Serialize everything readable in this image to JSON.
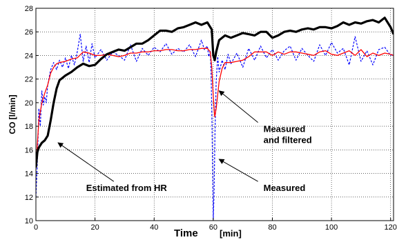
{
  "chart_data": {
    "type": "line",
    "title": "",
    "xlabel": "Time",
    "xlabel_unit": "[min]",
    "ylabel": "CO [l/min]",
    "xlim": [
      0,
      121
    ],
    "ylim": [
      10,
      28
    ],
    "xticks": [
      "0",
      "20",
      "40",
      "60",
      "80",
      "100",
      "120"
    ],
    "yticks": [
      "10",
      "12",
      "14",
      "16",
      "18",
      "20",
      "22",
      "24",
      "26",
      "28"
    ],
    "grid": true,
    "series": [
      {
        "name": "Estimated from HR",
        "color": "#000000",
        "style": "solid-thick",
        "x": [
          0,
          0.5,
          1,
          2,
          3,
          4,
          5,
          6,
          7,
          8,
          10,
          12,
          14,
          16,
          18,
          20,
          22,
          24,
          26,
          28,
          30,
          32,
          34,
          36,
          38,
          40,
          42,
          44,
          46,
          48,
          50,
          52,
          54,
          56,
          58,
          59.5,
          60,
          60.5,
          61,
          62,
          64,
          66,
          68,
          70,
          72,
          74,
          76,
          78,
          80,
          82,
          84,
          86,
          88,
          90,
          92,
          94,
          96,
          98,
          100,
          102,
          104,
          106,
          108,
          110,
          112,
          114,
          116,
          118,
          119,
          120,
          121
        ],
        "y": [
          14.5,
          15.8,
          16.2,
          16.6,
          16.8,
          17.2,
          18.5,
          20.0,
          21.2,
          21.9,
          22.3,
          22.6,
          23.0,
          23.3,
          23.1,
          23.2,
          23.7,
          24.1,
          24.3,
          24.5,
          24.4,
          24.7,
          25.0,
          25.0,
          25.3,
          25.7,
          26.1,
          26.1,
          26.0,
          26.3,
          26.4,
          26.6,
          26.8,
          26.6,
          26.8,
          26.2,
          24.0,
          23.6,
          24.3,
          25.3,
          25.7,
          25.5,
          25.7,
          25.9,
          25.8,
          25.7,
          26.0,
          26.0,
          25.5,
          25.7,
          26.0,
          26.1,
          26.0,
          26.2,
          26.3,
          26.2,
          26.4,
          26.4,
          26.3,
          26.5,
          26.8,
          26.6,
          26.8,
          26.7,
          26.9,
          27.0,
          26.8,
          27.2,
          26.8,
          26.4,
          25.8
        ]
      },
      {
        "name": "Measured",
        "color": "#0000ff",
        "style": "dashed",
        "x": [
          0,
          0.5,
          1,
          1.5,
          2,
          2.5,
          3,
          3.5,
          4,
          5,
          6,
          7,
          8,
          9,
          10,
          11,
          12,
          13,
          14,
          15,
          16,
          17,
          18,
          19,
          20,
          22,
          24,
          26,
          28,
          30,
          32,
          34,
          36,
          38,
          40,
          42,
          44,
          46,
          48,
          50,
          52,
          54,
          56,
          57,
          58,
          58.5,
          59,
          59.3,
          59.6,
          60,
          60.3,
          60.6,
          61,
          61.5,
          62,
          63,
          64,
          65,
          66,
          68,
          70,
          72,
          74,
          76,
          78,
          80,
          82,
          84,
          86,
          88,
          90,
          92,
          94,
          96,
          98,
          100,
          102,
          104,
          106,
          108,
          110,
          112,
          114,
          116,
          118,
          120,
          121
        ],
        "y": [
          12.0,
          15.0,
          19.5,
          18.0,
          21.0,
          19.8,
          20.5,
          20.0,
          21.5,
          22.8,
          23.4,
          22.8,
          23.6,
          23.0,
          23.8,
          22.9,
          24.0,
          23.2,
          24.3,
          25.8,
          23.5,
          24.8,
          23.4,
          25.0,
          23.8,
          24.5,
          23.6,
          24.3,
          24.0,
          23.6,
          24.9,
          23.5,
          24.6,
          24.0,
          24.7,
          24.3,
          25.0,
          24.1,
          24.6,
          24.3,
          24.9,
          23.9,
          25.3,
          24.5,
          24.8,
          23.9,
          24.4,
          22.0,
          18.0,
          10.1,
          12.5,
          17.5,
          21.8,
          23.9,
          22.6,
          23.6,
          22.8,
          24.1,
          23.3,
          24.2,
          23.0,
          24.6,
          23.6,
          24.8,
          23.8,
          24.5,
          23.6,
          24.4,
          24.8,
          23.6,
          24.6,
          24.0,
          23.5,
          24.9,
          24.0,
          25.1,
          24.2,
          24.6,
          23.2,
          25.6,
          23.5,
          24.4,
          23.2,
          24.5,
          24.7,
          24.0,
          24.1
        ]
      },
      {
        "name": "Measured and filtered",
        "color": "#ff0000",
        "style": "solid",
        "x": [
          0,
          0.5,
          1,
          2,
          3,
          4,
          5,
          6,
          7,
          8,
          10,
          12,
          14,
          16,
          18,
          20,
          22,
          24,
          26,
          28,
          30,
          32,
          34,
          36,
          38,
          40,
          42,
          44,
          46,
          48,
          50,
          52,
          54,
          56,
          58,
          59,
          59.5,
          60,
          60.5,
          61,
          62,
          63,
          64,
          66,
          68,
          70,
          72,
          74,
          76,
          78,
          80,
          82,
          84,
          86,
          88,
          90,
          92,
          94,
          96,
          98,
          100,
          102,
          104,
          106,
          108,
          110,
          112,
          114,
          116,
          118,
          120,
          121
        ],
        "y": [
          14.5,
          16.5,
          18.5,
          20.0,
          20.8,
          21.5,
          22.5,
          23.0,
          23.3,
          23.4,
          23.5,
          23.7,
          23.8,
          24.3,
          24.2,
          24.0,
          24.0,
          24.1,
          24.0,
          23.9,
          24.0,
          24.2,
          24.2,
          24.3,
          24.3,
          24.4,
          24.4,
          24.5,
          24.5,
          24.4,
          24.4,
          24.5,
          24.5,
          24.6,
          24.6,
          24.3,
          23.0,
          20.5,
          18.8,
          19.5,
          21.8,
          22.9,
          23.4,
          23.4,
          23.5,
          23.6,
          23.9,
          24.3,
          24.3,
          24.3,
          24.0,
          24.3,
          24.1,
          24.3,
          24.3,
          24.2,
          24.1,
          24.0,
          24.3,
          24.4,
          24.1,
          24.0,
          24.2,
          24.4,
          24.0,
          24.5,
          23.9,
          24.2,
          24.0,
          24.2,
          24.1,
          24.0
        ]
      }
    ],
    "annotations": [
      {
        "text": "Estimated from HR",
        "target_x": 7.5,
        "target_y": 16.6,
        "label_x": 17,
        "label_y": 12.5
      },
      {
        "text": "Measured",
        "target_x": 62,
        "target_y": 21.0,
        "label_x": 77,
        "label_y": 17.5,
        "second_line": "and filtered"
      },
      {
        "text": "Measured",
        "target_x": 62,
        "target_y": 15.2,
        "label_x": 77,
        "label_y": 12.5
      }
    ]
  }
}
